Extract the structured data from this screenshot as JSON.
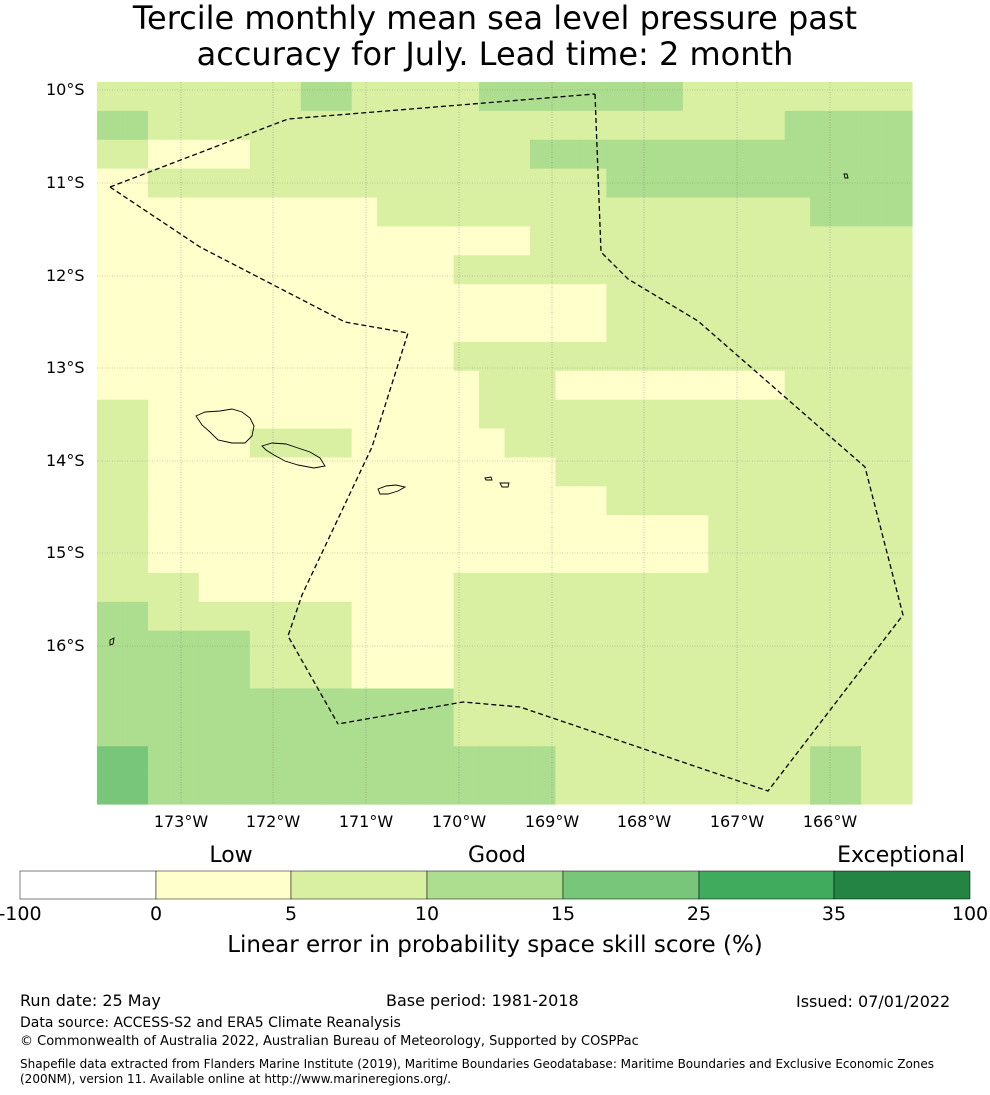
{
  "title": {
    "line1": "Tercile monthly mean sea level pressure past",
    "line2": "accuracy for July. Lead time: 2 month"
  },
  "map": {
    "lat_labels": [
      "10°S",
      "11°S",
      "12°S",
      "13°S",
      "14°S",
      "15°S",
      "16°S"
    ],
    "lon_labels": [
      "173°W",
      "172°W",
      "171°W",
      "170°W",
      "169°W",
      "168°W",
      "167°W",
      "166°W"
    ],
    "grid": [
      [
        1,
        1,
        1,
        1,
        1,
        1,
        1,
        1,
        2,
        2,
        1,
        1,
        1,
        1,
        1,
        2,
        2,
        2,
        2,
        2,
        2,
        2,
        2,
        1,
        1,
        1,
        1,
        1,
        1,
        1,
        1,
        1
      ],
      [
        2,
        2,
        1,
        1,
        1,
        1,
        1,
        1,
        1,
        1,
        1,
        1,
        1,
        1,
        1,
        1,
        1,
        1,
        1,
        1,
        1,
        1,
        1,
        1,
        1,
        1,
        1,
        2,
        2,
        2,
        2,
        2
      ],
      [
        1,
        1,
        0,
        0,
        0,
        0,
        1,
        1,
        1,
        1,
        1,
        1,
        1,
        1,
        1,
        1,
        1,
        2,
        2,
        2,
        2,
        2,
        2,
        2,
        2,
        2,
        2,
        2,
        2,
        2,
        2,
        2
      ],
      [
        0,
        0,
        1,
        1,
        1,
        1,
        1,
        1,
        1,
        1,
        1,
        1,
        1,
        1,
        1,
        1,
        1,
        1,
        1,
        1,
        2,
        2,
        2,
        2,
        2,
        2,
        2,
        2,
        2,
        2,
        2,
        2
      ],
      [
        0,
        0,
        0,
        0,
        0,
        0,
        0,
        0,
        0,
        0,
        0,
        1,
        1,
        1,
        1,
        1,
        1,
        1,
        1,
        1,
        1,
        1,
        1,
        1,
        1,
        1,
        1,
        1,
        2,
        2,
        2,
        2
      ],
      [
        0,
        0,
        0,
        0,
        0,
        0,
        0,
        0,
        0,
        0,
        0,
        0,
        0,
        0,
        0,
        0,
        0,
        1,
        1,
        1,
        1,
        1,
        1,
        1,
        1,
        1,
        1,
        1,
        1,
        1,
        1,
        1
      ],
      [
        0,
        0,
        0,
        0,
        0,
        0,
        0,
        0,
        0,
        0,
        0,
        0,
        0,
        0,
        1,
        1,
        1,
        1,
        1,
        1,
        1,
        1,
        1,
        1,
        1,
        1,
        1,
        1,
        1,
        1,
        1,
        1
      ],
      [
        0,
        0,
        0,
        0,
        0,
        0,
        0,
        0,
        0,
        0,
        0,
        0,
        0,
        0,
        0,
        0,
        0,
        0,
        0,
        0,
        1,
        1,
        1,
        1,
        1,
        1,
        1,
        1,
        1,
        1,
        1,
        1
      ],
      [
        0,
        0,
        0,
        0,
        0,
        0,
        0,
        0,
        0,
        0,
        0,
        0,
        0,
        0,
        0,
        0,
        0,
        0,
        0,
        0,
        1,
        1,
        1,
        1,
        1,
        1,
        1,
        1,
        1,
        1,
        1,
        1
      ],
      [
        0,
        0,
        0,
        0,
        0,
        0,
        0,
        0,
        0,
        0,
        0,
        0,
        0,
        0,
        1,
        1,
        1,
        1,
        1,
        1,
        1,
        1,
        1,
        1,
        1,
        1,
        1,
        1,
        1,
        1,
        1,
        1
      ],
      [
        0,
        0,
        0,
        0,
        0,
        0,
        0,
        0,
        0,
        0,
        0,
        0,
        0,
        0,
        0,
        1,
        1,
        1,
        0,
        0,
        0,
        0,
        0,
        0,
        0,
        0,
        0,
        1,
        1,
        1,
        1,
        1
      ],
      [
        1,
        1,
        0,
        0,
        0,
        0,
        0,
        0,
        0,
        0,
        0,
        0,
        0,
        0,
        0,
        1,
        1,
        1,
        1,
        1,
        1,
        1,
        1,
        1,
        1,
        1,
        1,
        1,
        1,
        1,
        1,
        1
      ],
      [
        1,
        1,
        0,
        0,
        0,
        0,
        1,
        1,
        1,
        1,
        0,
        0,
        0,
        0,
        0,
        0,
        1,
        1,
        1,
        1,
        1,
        1,
        1,
        1,
        1,
        1,
        1,
        1,
        1,
        1,
        1,
        1
      ],
      [
        1,
        1,
        0,
        0,
        0,
        0,
        0,
        0,
        0,
        0,
        0,
        0,
        0,
        0,
        0,
        0,
        0,
        0,
        1,
        1,
        1,
        1,
        1,
        1,
        1,
        1,
        1,
        1,
        1,
        1,
        1,
        1
      ],
      [
        1,
        1,
        0,
        0,
        0,
        0,
        0,
        0,
        0,
        0,
        0,
        0,
        0,
        0,
        0,
        0,
        0,
        0,
        0,
        0,
        1,
        1,
        1,
        1,
        1,
        1,
        1,
        1,
        1,
        1,
        1,
        1
      ],
      [
        1,
        1,
        0,
        0,
        0,
        0,
        0,
        0,
        0,
        0,
        0,
        0,
        0,
        0,
        0,
        0,
        0,
        0,
        0,
        0,
        0,
        0,
        0,
        0,
        1,
        1,
        1,
        1,
        1,
        1,
        1,
        1
      ],
      [
        1,
        1,
        0,
        0,
        0,
        0,
        0,
        0,
        0,
        0,
        0,
        0,
        0,
        0,
        0,
        0,
        0,
        0,
        0,
        0,
        0,
        0,
        0,
        0,
        1,
        1,
        1,
        1,
        1,
        1,
        1,
        1
      ],
      [
        1,
        1,
        1,
        1,
        0,
        0,
        0,
        0,
        0,
        0,
        0,
        0,
        0,
        0,
        1,
        1,
        1,
        1,
        1,
        1,
        1,
        1,
        1,
        1,
        1,
        1,
        1,
        1,
        1,
        1,
        1,
        1
      ],
      [
        2,
        2,
        1,
        1,
        1,
        1,
        1,
        1,
        1,
        1,
        0,
        0,
        0,
        0,
        1,
        1,
        1,
        1,
        1,
        1,
        1,
        1,
        1,
        1,
        1,
        1,
        1,
        1,
        1,
        1,
        1,
        1
      ],
      [
        2,
        2,
        2,
        2,
        2,
        2,
        1,
        1,
        1,
        1,
        0,
        0,
        0,
        0,
        1,
        1,
        1,
        1,
        1,
        1,
        1,
        1,
        1,
        1,
        1,
        1,
        1,
        1,
        1,
        1,
        1,
        1
      ],
      [
        2,
        2,
        2,
        2,
        2,
        2,
        1,
        1,
        1,
        1,
        0,
        0,
        0,
        0,
        1,
        1,
        1,
        1,
        1,
        1,
        1,
        1,
        1,
        1,
        1,
        1,
        1,
        1,
        1,
        1,
        1,
        1
      ],
      [
        2,
        2,
        2,
        2,
        2,
        2,
        2,
        2,
        2,
        2,
        2,
        2,
        2,
        2,
        1,
        1,
        1,
        1,
        1,
        1,
        1,
        1,
        1,
        1,
        1,
        1,
        1,
        1,
        1,
        1,
        1,
        1
      ],
      [
        2,
        2,
        2,
        2,
        2,
        2,
        2,
        2,
        2,
        2,
        2,
        2,
        2,
        2,
        1,
        1,
        1,
        1,
        1,
        1,
        1,
        1,
        1,
        1,
        1,
        1,
        1,
        1,
        1,
        1,
        1,
        1
      ],
      [
        3,
        3,
        2,
        2,
        2,
        2,
        2,
        2,
        2,
        2,
        2,
        2,
        2,
        2,
        2,
        2,
        2,
        2,
        1,
        1,
        1,
        1,
        1,
        1,
        1,
        1,
        1,
        1,
        2,
        2,
        1,
        1
      ],
      [
        3,
        3,
        2,
        2,
        2,
        2,
        2,
        2,
        2,
        2,
        2,
        2,
        2,
        2,
        2,
        2,
        2,
        2,
        1,
        1,
        1,
        1,
        1,
        1,
        1,
        1,
        1,
        1,
        2,
        2,
        1,
        1
      ]
    ]
  },
  "colorbar": {
    "categories": [
      "Low",
      "Good",
      "Exceptional"
    ],
    "ticks": [
      "-100",
      "0",
      "5",
      "10",
      "15",
      "25",
      "35",
      "100"
    ],
    "colors": [
      "#ffffff",
      "#ffffcc",
      "#d9f0a3",
      "#addd8e",
      "#78c679",
      "#41ab5d",
      "#238443"
    ],
    "axis_label": "Linear error in probability space skill score (%)"
  },
  "footer": {
    "run_date": "Run date: 25 May",
    "base_period": "Base period: 1981-2018",
    "issued": "Issued: 07/01/2022",
    "data_source": "Data source: ACCESS-S2 and ERA5 Climate Reanalysis",
    "copyright": "© Commonwealth of Australia 2022, Australian Bureau of Meteorology, Supported by COSPPac",
    "shapefile": "Shapefile data extracted from Flanders Marine Institute (2019), Maritime Boundaries Geodatabase: Maritime Boundaries and Exclusive Economic Zones (200NM), version 11. Available online at http://www.marineregions.org/."
  }
}
